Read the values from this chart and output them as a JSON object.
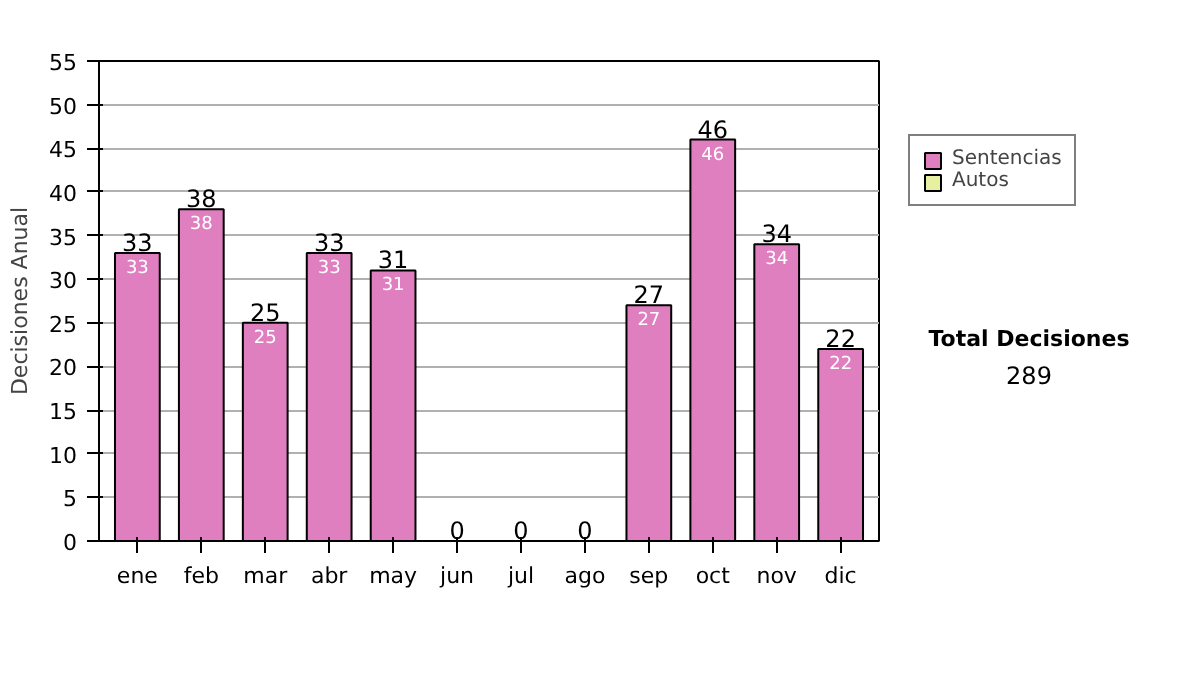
{
  "chart_data": {
    "type": "bar",
    "stacked": true,
    "ylabel": "Decisiones Anual",
    "categories": [
      "ene",
      "feb",
      "mar",
      "abr",
      "may",
      "jun",
      "jul",
      "ago",
      "sep",
      "oct",
      "nov",
      "dic"
    ],
    "series": [
      {
        "name": "Sentencias",
        "color": "#e07fc0",
        "values": [
          33,
          38,
          25,
          33,
          31,
          0,
          0,
          0,
          27,
          46,
          34,
          22
        ],
        "value_labels": [
          "33",
          "38",
          "25",
          "33",
          "31",
          null,
          null,
          null,
          "27",
          "46",
          "34",
          "22"
        ]
      },
      {
        "name": "Autos",
        "color": "#e6f0a0",
        "values": [
          0,
          0,
          0,
          0,
          0,
          0,
          0,
          0,
          0,
          0,
          0,
          0
        ]
      }
    ],
    "totals": [
      "33",
      "38",
      "25",
      "33",
      "31",
      "0",
      "0",
      "0",
      "27",
      "46",
      "34",
      "22"
    ],
    "ylim": [
      0,
      55
    ],
    "yticks": [
      0,
      5,
      10,
      15,
      20,
      25,
      30,
      35,
      40,
      45,
      50,
      55
    ],
    "grid": "y",
    "legend": "right",
    "annotations": [
      "Total Decisiones",
      "289"
    ]
  }
}
